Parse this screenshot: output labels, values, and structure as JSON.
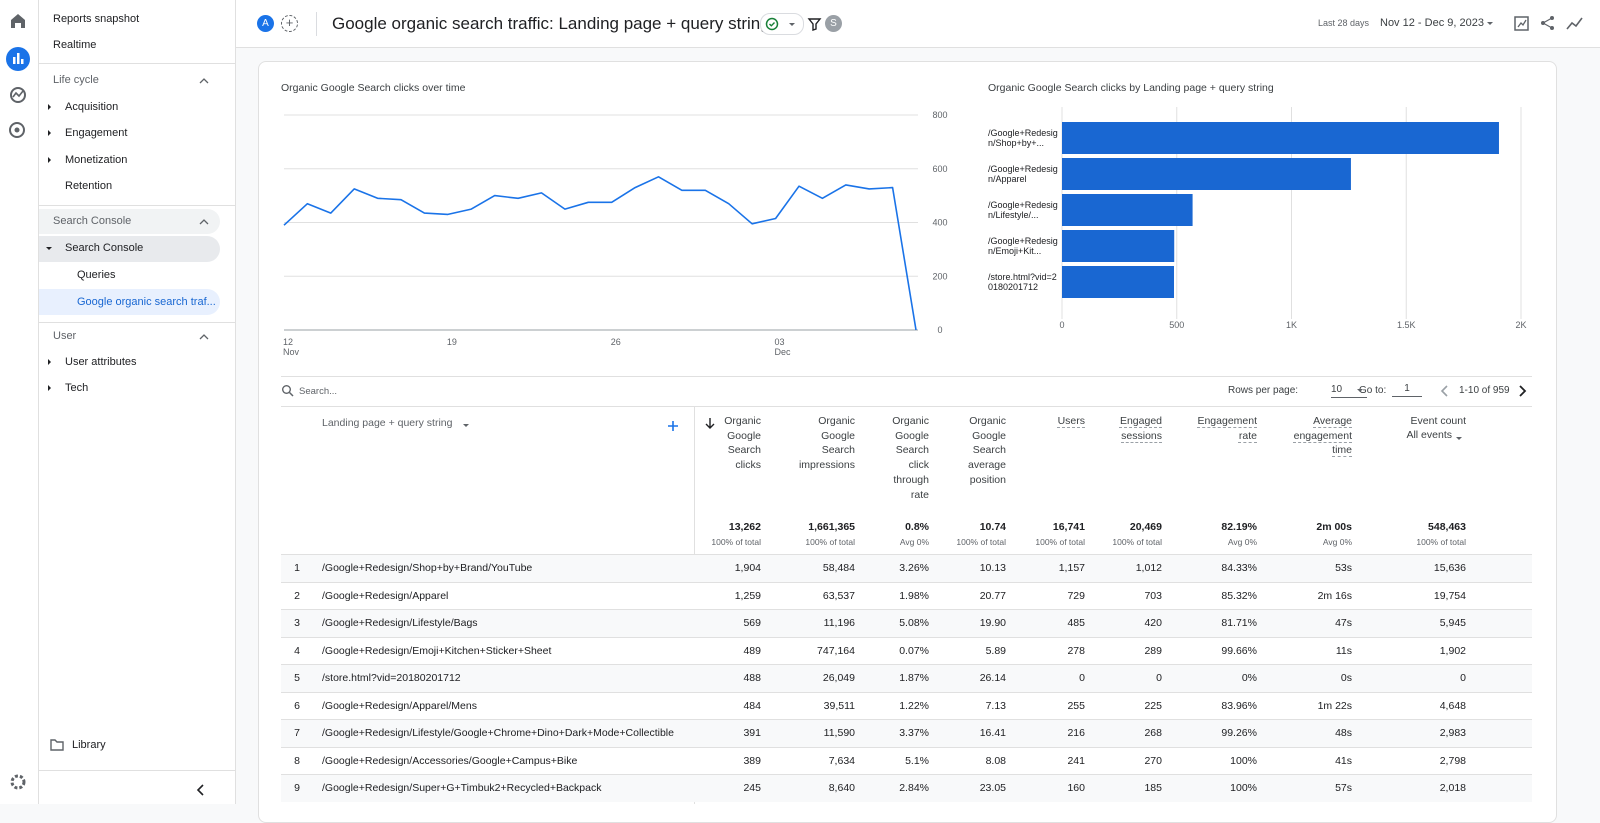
{
  "sidebar": {
    "top": [
      "Reports snapshot",
      "Realtime"
    ],
    "life_cycle": {
      "title": "Life cycle",
      "items": [
        "Acquisition",
        "Engagement",
        "Monetization",
        "Retention"
      ]
    },
    "search_console": {
      "title": "Search Console",
      "items": [
        "Search Console",
        "Queries",
        "Google organic search traf..."
      ]
    },
    "user": {
      "title": "User",
      "items": [
        "User attributes",
        "Tech"
      ]
    },
    "library": "Library"
  },
  "header": {
    "avatar": "A",
    "title": "Google organic search traffic: Landing page + query string",
    "badge": "S",
    "date_range_label": "Last 28 days",
    "date_range": "Nov 12 - Dec 9, 2023"
  },
  "chart_data": [
    {
      "type": "line",
      "title": "Organic Google Search clicks over time",
      "categories": [
        "12 Nov",
        null,
        null,
        null,
        null,
        null,
        null,
        "19",
        null,
        null,
        null,
        null,
        null,
        null,
        "26",
        null,
        null,
        null,
        null,
        null,
        null,
        "03 Dec",
        null,
        null,
        null,
        null,
        null,
        null
      ],
      "values": [
        390,
        470,
        435,
        525,
        490,
        485,
        435,
        430,
        450,
        500,
        490,
        510,
        450,
        475,
        475,
        530,
        570,
        520,
        520,
        470,
        395,
        415,
        535,
        490,
        540,
        525,
        530,
        0
      ],
      "color": "#1a73e8",
      "ylim": [
        0,
        800
      ],
      "yticks": [
        0,
        200,
        400,
        600,
        800
      ],
      "y_axis_position": "right",
      "grid": true
    },
    {
      "type": "bar",
      "orientation": "horizontal",
      "title": "Organic Google Search clicks by Landing page + query string",
      "categories": [
        "/Google+Redesign/Shop+by+...",
        "/Google+Redesign/Apparel",
        "/Google+Redesign/Lifestyle/...",
        "/Google+Redesign/Emoji+Kit...",
        "/store.html?vid=20180201712"
      ],
      "values": [
        1904,
        1259,
        569,
        489,
        488
      ],
      "color": "#1967d2",
      "xlim": [
        0,
        2000
      ],
      "xticks": [
        0,
        500,
        {
          "value": 1000,
          "label": "1K"
        },
        {
          "value": 1500,
          "label": "1.5K"
        },
        {
          "value": 2000,
          "label": "2K"
        }
      ],
      "grid": true
    }
  ],
  "table": {
    "search_placeholder": "Search...",
    "rows_per_page_label": "Rows per page:",
    "rows_per_page": "10",
    "goto_label": "Go to:",
    "goto": "1",
    "pagination": "1-10 of 959",
    "dimension": "Landing page + query string",
    "columns": [
      {
        "name": "Organic Google Search clicks",
        "total": "13,262",
        "total_note": "100% of total"
      },
      {
        "name": "Organic Google Search impressions",
        "total": "1,661,365",
        "total_note": "100% of total"
      },
      {
        "name": "Organic Google Search click through rate",
        "total": "0.8%",
        "total_note": "Avg 0%"
      },
      {
        "name": "Organic Google Search average position",
        "total": "10.74",
        "total_note": "100% of total"
      },
      {
        "name": "Users",
        "total": "16,741",
        "total_note": "100% of total"
      },
      {
        "name": "Engaged sessions",
        "total": "20,469",
        "total_note": "100% of total"
      },
      {
        "name": "Engagement rate",
        "total": "82.19%",
        "total_note": "Avg 0%"
      },
      {
        "name": "Average engagement time",
        "total": "2m 00s",
        "total_note": "Avg 0%"
      },
      {
        "name": "Event count",
        "filter": "All events",
        "total": "548,463",
        "total_note": "100% of total"
      }
    ],
    "rows": [
      [
        "1",
        "/Google+Redesign/Shop+by+Brand/YouTube",
        "1,904",
        "58,484",
        "3.26%",
        "10.13",
        "1,157",
        "1,012",
        "84.33%",
        "53s",
        "15,636"
      ],
      [
        "2",
        "/Google+Redesign/Apparel",
        "1,259",
        "63,537",
        "1.98%",
        "20.77",
        "729",
        "703",
        "85.32%",
        "2m 16s",
        "19,754"
      ],
      [
        "3",
        "/Google+Redesign/Lifestyle/Bags",
        "569",
        "11,196",
        "5.08%",
        "19.90",
        "485",
        "420",
        "81.71%",
        "47s",
        "5,945"
      ],
      [
        "4",
        "/Google+Redesign/Emoji+Kitchen+Sticker+Sheet",
        "489",
        "747,164",
        "0.07%",
        "5.89",
        "278",
        "289",
        "99.66%",
        "11s",
        "1,902"
      ],
      [
        "5",
        "/store.html?vid=20180201712",
        "488",
        "26,049",
        "1.87%",
        "26.14",
        "0",
        "0",
        "0%",
        "0s",
        "0"
      ],
      [
        "6",
        "/Google+Redesign/Apparel/Mens",
        "484",
        "39,511",
        "1.22%",
        "7.13",
        "255",
        "225",
        "83.96%",
        "1m 22s",
        "4,648"
      ],
      [
        "7",
        "/Google+Redesign/Lifestyle/Google+Chrome+Dino+Dark+Mode+Collectible",
        "391",
        "11,590",
        "3.37%",
        "16.41",
        "216",
        "268",
        "99.26%",
        "48s",
        "2,983"
      ],
      [
        "8",
        "/Google+Redesign/Accessories/Google+Campus+Bike",
        "389",
        "7,634",
        "5.1%",
        "8.08",
        "241",
        "270",
        "100%",
        "41s",
        "2,798"
      ],
      [
        "9",
        "/Google+Redesign/Super+G+Timbuk2+Recycled+Backpack",
        "245",
        "8,640",
        "2.84%",
        "23.05",
        "160",
        "185",
        "100%",
        "57s",
        "2,018"
      ]
    ]
  }
}
